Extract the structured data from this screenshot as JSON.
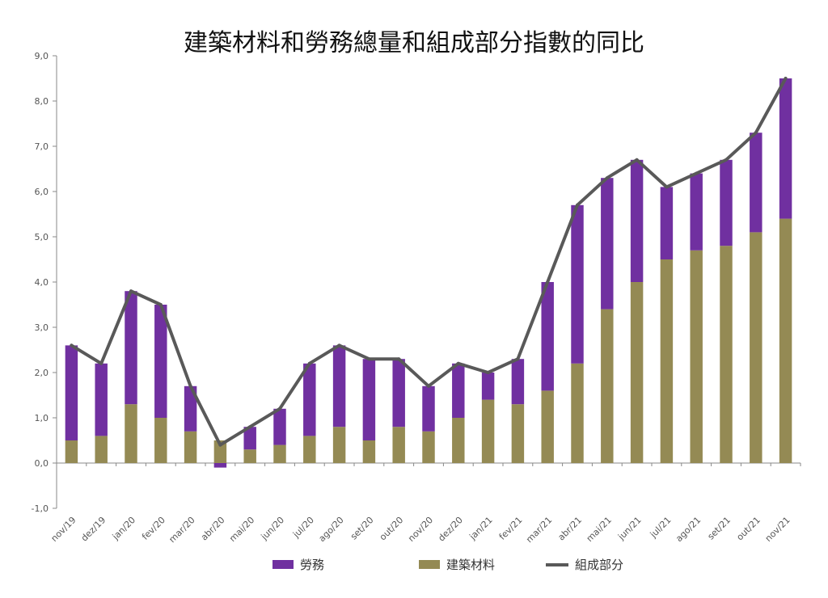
{
  "chart_data": {
    "type": "bar",
    "title": "建築材料和勞務總量和組成部分指數的同比",
    "categories": [
      "nov/19",
      "dez/19",
      "jan/20",
      "fev/20",
      "mar/20",
      "abr/20",
      "mai/20",
      "jun/20",
      "jul/20",
      "ago/20",
      "set/20",
      "out/20",
      "nov/20",
      "dez/20",
      "jan/21",
      "fev/21",
      "mar/21",
      "abr/21",
      "mai/21",
      "jun/21",
      "jul/21",
      "ago/21",
      "set/21",
      "out/21",
      "nov/21"
    ],
    "series": [
      {
        "name": "勞務",
        "kind": "stacked-bar",
        "color": "#7030a0",
        "values": [
          2.1,
          1.6,
          2.5,
          2.5,
          1.0,
          -0.1,
          0.5,
          0.8,
          1.6,
          1.8,
          1.8,
          1.5,
          1.0,
          1.2,
          0.6,
          1.0,
          2.4,
          3.5,
          2.9,
          2.7,
          1.6,
          1.7,
          1.9,
          2.2,
          3.1
        ]
      },
      {
        "name": "建築材料",
        "kind": "stacked-bar",
        "color": "#948a54",
        "values": [
          0.5,
          0.6,
          1.3,
          1.0,
          0.7,
          0.5,
          0.3,
          0.4,
          0.6,
          0.8,
          0.5,
          0.8,
          0.7,
          1.0,
          1.4,
          1.3,
          1.6,
          2.2,
          3.4,
          4.0,
          4.5,
          4.7,
          4.8,
          5.1,
          5.4
        ]
      },
      {
        "name": "組成部分",
        "kind": "line",
        "color": "#595959",
        "values": [
          2.6,
          2.2,
          3.8,
          3.5,
          1.7,
          0.4,
          0.8,
          1.2,
          2.2,
          2.6,
          2.3,
          2.3,
          1.7,
          2.2,
          2.0,
          2.3,
          4.0,
          5.7,
          6.3,
          6.7,
          6.1,
          6.4,
          6.7,
          7.3,
          8.5
        ]
      }
    ],
    "yticks": [
      "-1,0",
      "0,0",
      "1,0",
      "2,0",
      "3,0",
      "4,0",
      "5,0",
      "6,0",
      "7,0",
      "8,0",
      "9,0"
    ],
    "ylim": [
      -1,
      9
    ],
    "grid": false,
    "legend_position": "bottom"
  }
}
